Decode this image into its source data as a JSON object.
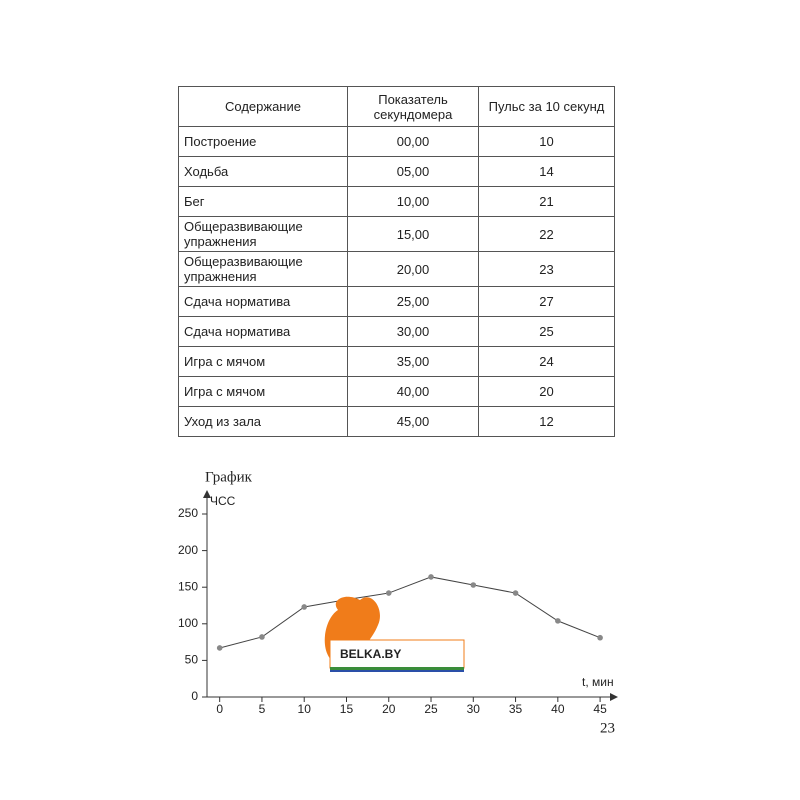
{
  "table": {
    "header": [
      "Содержание",
      "Показатель секундомера",
      "Пульс за 10 секунд"
    ],
    "rows": [
      [
        "Построение",
        "00,00",
        "10"
      ],
      [
        "Ходьба",
        "05,00",
        "14"
      ],
      [
        "Бег",
        "10,00",
        "21"
      ],
      [
        "Общеразвивающие упражнения",
        "15,00",
        "22"
      ],
      [
        "Общеразвивающие упражнения",
        "20,00",
        "23"
      ],
      [
        "Сдача норматива",
        "25,00",
        "27"
      ],
      [
        "Сдача норматива",
        "30,00",
        "25"
      ],
      [
        "Игра с мячом",
        "35,00",
        "24"
      ],
      [
        "Игра с мячом",
        "40,00",
        "20"
      ],
      [
        "Уход из зала",
        "45,00",
        "12"
      ]
    ]
  },
  "chart_data": {
    "type": "line",
    "title": "График",
    "y_label": "ЧСС",
    "x_label": "t, мин",
    "x": [
      0,
      5,
      10,
      15,
      20,
      25,
      30,
      35,
      40,
      45
    ],
    "values": [
      67,
      82,
      123,
      133,
      142,
      164,
      153,
      142,
      104,
      81
    ],
    "color": "#444444",
    "xlim": [
      -1.5,
      47
    ],
    "xticks": [
      0,
      5,
      10,
      15,
      20,
      25,
      30,
      35,
      40,
      45
    ],
    "ylim": [
      0,
      250
    ],
    "yticks": [
      0,
      50,
      100,
      150,
      200,
      250
    ]
  },
  "watermark": "BELKA.BY",
  "page_number": "23"
}
